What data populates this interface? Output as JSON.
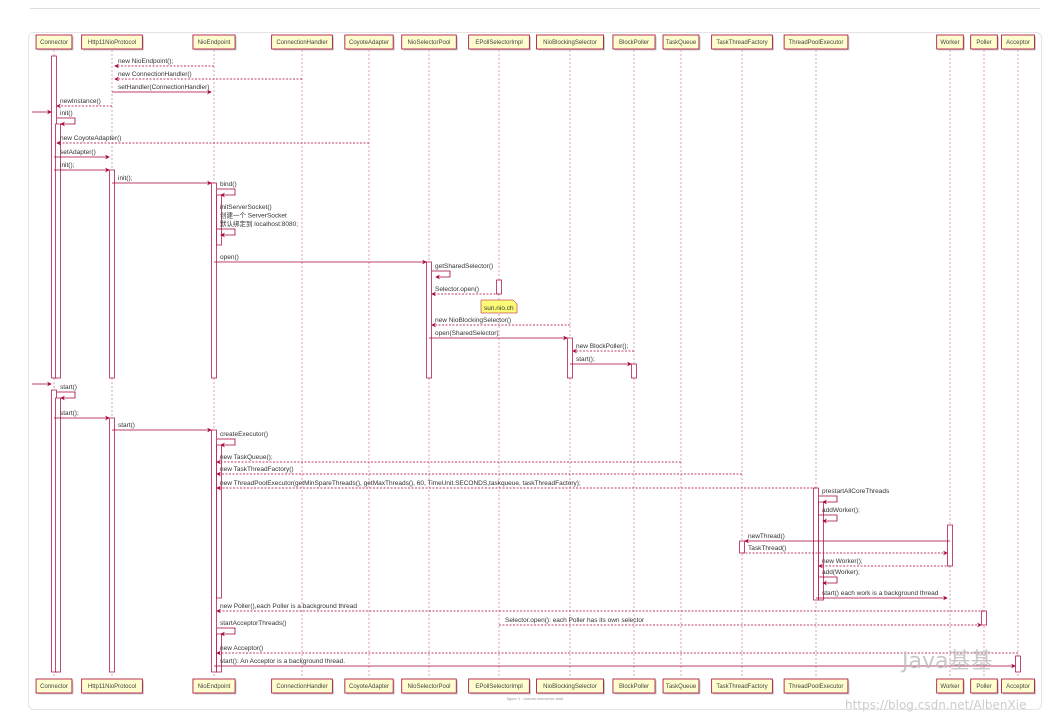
{
  "diagram": {
    "type": "sequence",
    "colors": {
      "arrow": "#a80036",
      "participant_fill": "#fefece",
      "participant_border": "#a80036",
      "lifeline": "#a80036",
      "note_fill": "#fbfb77"
    },
    "participants": [
      "Connector",
      "Http11NioProtocol",
      "NioEndpoint",
      "ConnectionHandler",
      "CoyoteAdapter",
      "NioSelectorPool",
      "EPollSelectorImpl",
      "NioBlockingSelector",
      "BlockPoller",
      "TaskQueue",
      "TaskThreadFactory",
      "ThreadPoolExecutor",
      "Worker",
      "Poller",
      "Acceptor"
    ],
    "messages": [
      {
        "from": "NioEndpoint",
        "to": "Http11NioProtocol",
        "label": "new NioEndpoint();",
        "style": "dashed"
      },
      {
        "from": "ConnectionHandler",
        "to": "Http11NioProtocol",
        "label": "new ConnectionHandler()",
        "style": "dashed"
      },
      {
        "from": "Http11NioProtocol",
        "to": "NioEndpoint",
        "label": "setHandler(ConnectionHandler)",
        "style": "solid"
      },
      {
        "from": "Http11NioProtocol",
        "to": "Connector",
        "label": "newInstance()",
        "style": "dashed"
      },
      {
        "from": "[",
        "to": "Connector",
        "label": "",
        "style": "solid"
      },
      {
        "from": "Connector",
        "to": "Connector",
        "label": "init()",
        "style": "solid"
      },
      {
        "from": "CoyoteAdapter",
        "to": "Connector",
        "label": "new CoyoteAdapter()",
        "style": "dashed"
      },
      {
        "from": "Connector",
        "to": "Http11NioProtocol",
        "label": "setAdapter()",
        "style": "solid"
      },
      {
        "from": "Connector",
        "to": "Http11NioProtocol",
        "label": "init();",
        "style": "solid"
      },
      {
        "from": "Http11NioProtocol",
        "to": "NioEndpoint",
        "label": "init();",
        "style": "solid"
      },
      {
        "from": "NioEndpoint",
        "to": "NioEndpoint",
        "label": "bind()",
        "style": "solid"
      },
      {
        "from": "NioEndpoint",
        "to": "NioEndpoint",
        "label": "initServerSocket()\n创建一个 ServerSocket\n默认绑定到 localhost:8080;",
        "style": "solid"
      },
      {
        "from": "NioEndpoint",
        "to": "NioSelectorPool",
        "label": "open()",
        "style": "solid"
      },
      {
        "from": "NioSelectorPool",
        "to": "NioSelectorPool",
        "label": "getSharedSelector()",
        "style": "solid"
      },
      {
        "from": "EPollSelectorImpl",
        "to": "NioSelectorPool",
        "label": "Selector.open()",
        "style": "dashed"
      },
      {
        "from": "NioBlockingSelector",
        "to": "NioSelectorPool",
        "label": "new NioBlockingSelector()",
        "style": "dashed"
      },
      {
        "from": "NioSelectorPool",
        "to": "NioBlockingSelector",
        "label": "open(SharedSelector)",
        "style": "solid"
      },
      {
        "from": "BlockPoller",
        "to": "NioBlockingSelector",
        "label": "new BlockPoller();",
        "style": "dashed"
      },
      {
        "from": "NioBlockingSelector",
        "to": "BlockPoller",
        "label": "start();",
        "style": "solid"
      },
      {
        "from": "[",
        "to": "Connector",
        "label": "",
        "style": "solid"
      },
      {
        "from": "Connector",
        "to": "Connector",
        "label": "start()",
        "style": "solid"
      },
      {
        "from": "Connector",
        "to": "Http11NioProtocol",
        "label": "start();",
        "style": "solid"
      },
      {
        "from": "Http11NioProtocol",
        "to": "NioEndpoint",
        "label": "start()",
        "style": "solid"
      },
      {
        "from": "NioEndpoint",
        "to": "NioEndpoint",
        "label": "createExecutor()",
        "style": "solid"
      },
      {
        "from": "TaskQueue",
        "to": "NioEndpoint",
        "label": "new TaskQueue();",
        "style": "dashed"
      },
      {
        "from": "TaskThreadFactory",
        "to": "NioEndpoint",
        "label": "new TaskThreadFactory()",
        "style": "dashed"
      },
      {
        "from": "ThreadPoolExecutor",
        "to": "NioEndpoint",
        "label": "new ThreadPoolExecutor(getMinSpareThreads(), getMaxThreads(), 60, TimeUnit.SECONDS,taskqueue, taskThreadFactory);",
        "style": "dashed"
      },
      {
        "from": "ThreadPoolExecutor",
        "to": "ThreadPoolExecutor",
        "label": "prestartAllCoreThreads",
        "style": "solid"
      },
      {
        "from": "ThreadPoolExecutor",
        "to": "ThreadPoolExecutor",
        "label": "addWorker();",
        "style": "solid"
      },
      {
        "from": "Worker",
        "to": "TaskThreadFactory",
        "label": "newThread()",
        "style": "solid"
      },
      {
        "from": "TaskThreadFactory",
        "to": "Worker",
        "label": "TaskThread()",
        "style": "dashed"
      },
      {
        "from": "Worker",
        "to": "ThreadPoolExecutor",
        "label": "new Worker();",
        "style": "dashed"
      },
      {
        "from": "ThreadPoolExecutor",
        "to": "ThreadPoolExecutor",
        "label": "add(Worker);",
        "style": "solid"
      },
      {
        "from": "ThreadPoolExecutor",
        "to": "Worker",
        "label": "start() each work is a background thread",
        "style": "solid"
      },
      {
        "from": "Poller",
        "to": "NioEndpoint",
        "label": "new Poller(),each Poller is a background thread",
        "style": "dashed"
      },
      {
        "from": "EPollSelectorImpl",
        "to": "Poller",
        "label": "Selector.open(): each Poller has its own selector",
        "style": "dashed"
      },
      {
        "from": "NioEndpoint",
        "to": "NioEndpoint",
        "label": "startAcceptorThreads()",
        "style": "solid"
      },
      {
        "from": "Acceptor",
        "to": "NioEndpoint",
        "label": "new Acceptor()",
        "style": "dashed"
      },
      {
        "from": "NioEndpoint",
        "to": "Acceptor",
        "label": "start(): An Acceptor is a background thread.",
        "style": "solid"
      }
    ],
    "note": {
      "text": "sun.nio.ch",
      "over": "EPollSelectorImpl"
    },
    "caption": "figure 1 - tomcat connector start"
  },
  "watermark": {
    "text": "Java基基",
    "url": "https://blog.csdn.net/AlbenXie"
  }
}
